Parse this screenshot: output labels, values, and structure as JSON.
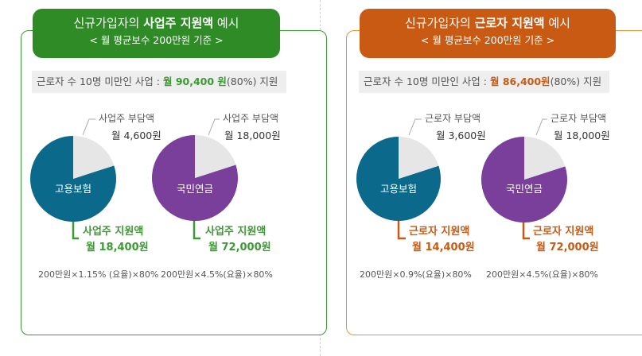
{
  "colors": {
    "green": "#3c9a32",
    "orange": "#c85a14",
    "teal": "#0b6a8c",
    "purple": "#7a3f9a",
    "gray": "#e6e6e6"
  },
  "employer": {
    "title_pre": "신규가입자의 ",
    "title_bold": "사업주 지원액",
    "title_post": " 예시",
    "subtitle": "< 월 평균보수 200만원 기준 >",
    "info_pre": "근로자 수 10명 미만인 사업 : ",
    "info_amt": "월 90,400 원",
    "info_post": "(80%) 지원",
    "pies": [
      {
        "name": "고용보험",
        "burden_label": "사업주 부담액",
        "burden_amount": "월 4,600원",
        "support_label": "사업주 지원액",
        "support_amount": "월 18,400원",
        "support_fraction": 0.8,
        "formula": "200만원×1.15% (요율)×80%"
      },
      {
        "name": "국민연금",
        "burden_label": "사업주 부담액",
        "burden_amount": "월 18,000원",
        "support_label": "사업주 지원액",
        "support_amount": "월 72,000원",
        "support_fraction": 0.8,
        "formula": "200만원×4.5%(요율)×80%"
      }
    ]
  },
  "worker": {
    "title_pre": "신규가입자의 ",
    "title_bold": "근로자 지원액",
    "title_post": " 예시",
    "subtitle": "< 월 평균보수 200만원 기준 >",
    "info_pre": "근로자 수 10명 미만인 사업 : ",
    "info_amt": "월 86,400원",
    "info_post": "(80%) 지원",
    "pies": [
      {
        "name": "고용보험",
        "burden_label": "근로자 부담액",
        "burden_amount": "월 3,600원",
        "support_label": "근로자 지원액",
        "support_amount": "월 14,400원",
        "support_fraction": 0.8,
        "formula": "200만원×0.9%(요율)×80%"
      },
      {
        "name": "국민연금",
        "burden_label": "근로자 부담액",
        "burden_amount": "월 18,000원",
        "support_label": "근로자 지원액",
        "support_amount": "월 72,000원",
        "support_fraction": 0.8,
        "formula": "200만원×4.5%(요율)×80%"
      }
    ]
  }
}
